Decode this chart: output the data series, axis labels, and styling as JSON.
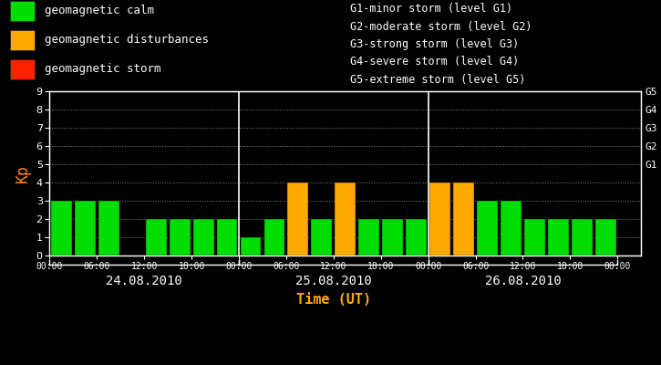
{
  "background_color": "#000000",
  "bar_facecolor_green": "#00dd00",
  "bar_facecolor_orange": "#ffaa00",
  "bar_facecolor_red": "#ff2200",
  "bar_edge_color": "#000000",
  "axis_color": "#ffffff",
  "kp_label_color": "#ff8800",
  "time_label_color": "#ffaa00",
  "date_label_color": "#ffffff",
  "dot_color": "#888888",
  "right_label_color": "#ffffff",
  "days": [
    "24.08.2010",
    "25.08.2010",
    "26.08.2010"
  ],
  "kp_values": [
    3,
    3,
    3,
    0,
    2,
    2,
    2,
    2,
    1,
    2,
    4,
    2,
    4,
    2,
    2,
    2,
    4,
    4,
    3,
    3,
    2,
    2,
    2,
    2
  ],
  "ylim": [
    0,
    9
  ],
  "yticks": [
    0,
    1,
    2,
    3,
    4,
    5,
    6,
    7,
    8,
    9
  ],
  "right_ytick_positions": [
    5,
    6,
    7,
    8,
    9
  ],
  "right_ytick_names": [
    "G1",
    "G2",
    "G3",
    "G4",
    "G5"
  ],
  "legend_items": [
    {
      "label": "geomagnetic calm",
      "color": "#00dd00"
    },
    {
      "label": "geomagnetic disturbances",
      "color": "#ffaa00"
    },
    {
      "label": "geomagnetic storm",
      "color": "#ff2200"
    }
  ],
  "right_legend_lines": [
    "G1-minor storm (level G1)",
    "G2-moderate storm (level G2)",
    "G3-strong storm (level G3)",
    "G4-severe storm (level G4)",
    "G5-extreme storm (level G5)"
  ],
  "xlabel": "Time (UT)",
  "ylabel": "Kp",
  "bar_width": 0.88,
  "vline_color": "#ffffff",
  "bottom_bracket_color": "#ffffff",
  "n_bars": 24,
  "bars_per_day": 8,
  "time_tick_labels": [
    "00:00",
    "06:00",
    "12:00",
    "18:00",
    "00:00",
    "06:00",
    "12:00",
    "18:00",
    "00:00",
    "06:00",
    "12:00",
    "18:00",
    "00:00"
  ]
}
